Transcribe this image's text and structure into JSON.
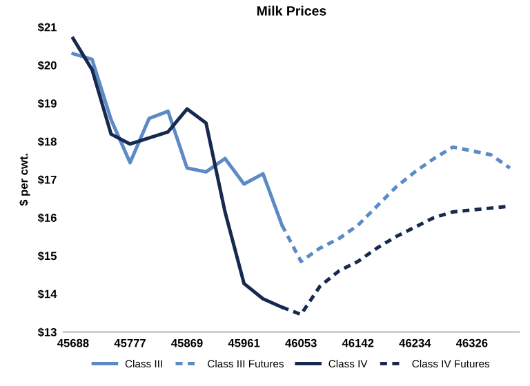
{
  "chart_data": {
    "type": "line",
    "title": "Milk Prices",
    "ylabel": "$ per cwt.",
    "categories": [
      "45688",
      null,
      null,
      "45777",
      null,
      null,
      "45869",
      null,
      null,
      "45961",
      null,
      null,
      "46053",
      null,
      null,
      "46142",
      null,
      null,
      "46234",
      null,
      null,
      "46326",
      null,
      null
    ],
    "series": [
      {
        "name": "Class III",
        "color": "#5b8ac6",
        "line_style": "solid",
        "values": [
          20.3,
          20.15,
          18.57,
          17.44,
          18.6,
          18.79,
          17.3,
          17.2,
          17.55,
          16.88,
          17.15,
          15.8,
          null,
          null,
          null,
          null,
          null,
          null,
          null,
          null,
          null,
          null,
          null,
          null
        ]
      },
      {
        "name": "Class III Futures",
        "color": "#5b8ac6",
        "line_style": "dotted",
        "values": [
          null,
          null,
          null,
          null,
          null,
          null,
          null,
          null,
          null,
          null,
          null,
          15.8,
          14.85,
          15.2,
          15.45,
          15.8,
          16.3,
          16.8,
          17.2,
          17.55,
          17.85,
          17.75,
          17.65,
          17.3
        ]
      },
      {
        "name": "Class IV",
        "color": "#17294f",
        "line_style": "solid",
        "values": [
          20.7,
          19.88,
          18.19,
          17.93,
          18.09,
          18.25,
          18.85,
          18.48,
          16.15,
          14.27,
          13.87,
          13.65,
          null,
          null,
          null,
          null,
          null,
          null,
          null,
          null,
          null,
          null,
          null,
          null
        ]
      },
      {
        "name": "Class IV Futures",
        "color": "#17294f",
        "line_style": "dotted",
        "values": [
          null,
          null,
          null,
          null,
          null,
          null,
          null,
          null,
          null,
          null,
          null,
          13.65,
          13.46,
          14.2,
          14.6,
          14.85,
          15.2,
          15.5,
          15.75,
          16.0,
          16.15,
          16.2,
          16.25,
          16.3
        ]
      }
    ],
    "ylim": [
      13,
      21
    ],
    "yticks": [
      {
        "value": 13,
        "label": "$13"
      },
      {
        "value": 14,
        "label": "$14"
      },
      {
        "value": 15,
        "label": "$15"
      },
      {
        "value": 16,
        "label": "$16"
      },
      {
        "value": 17,
        "label": "$17"
      },
      {
        "value": 18,
        "label": "$18"
      },
      {
        "value": 19,
        "label": "$19"
      },
      {
        "value": 20,
        "label": "$20"
      },
      {
        "value": 21,
        "label": "$21"
      }
    ],
    "grid": false,
    "legend": "bottom",
    "marker": "none"
  }
}
